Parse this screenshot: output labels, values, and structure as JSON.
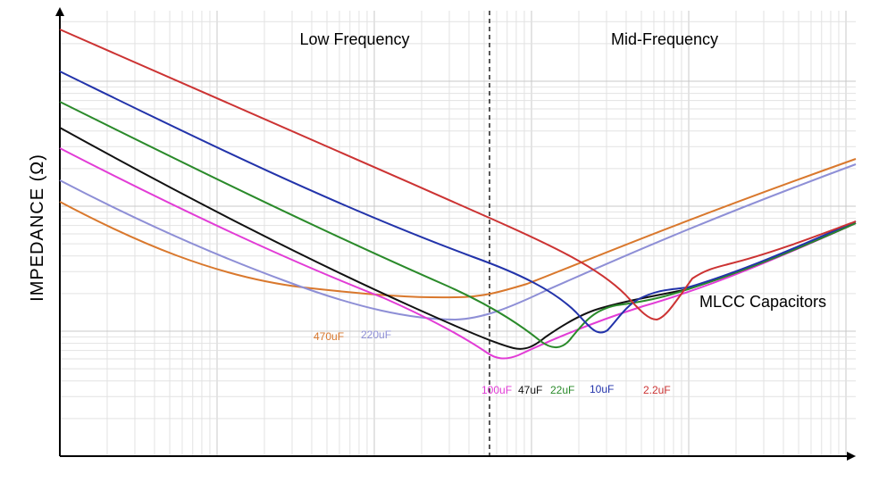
{
  "chart_data": {
    "type": "line",
    "title": "",
    "xlabel": "",
    "ylabel": "IMPEDANCE (Ω)",
    "x_scale": "log",
    "y_scale": "log",
    "grid": true,
    "regions": [
      {
        "label": "Low Frequency"
      },
      {
        "label": "Mid-Frequency"
      }
    ],
    "annotations": [
      {
        "text": "MLCC Capacitors"
      }
    ],
    "series": [
      {
        "name": "470uF",
        "color": "#d9782d"
      },
      {
        "name": "220uF",
        "color": "#8e8fd6"
      },
      {
        "name": "100uF",
        "color": "#e23cd6"
      },
      {
        "name": "47uF",
        "color": "#111111"
      },
      {
        "name": "22uF",
        "color": "#2a8a2a"
      },
      {
        "name": "10uF",
        "color": "#2233aa"
      },
      {
        "name": "2.2uF",
        "color": "#cc3333"
      }
    ]
  }
}
